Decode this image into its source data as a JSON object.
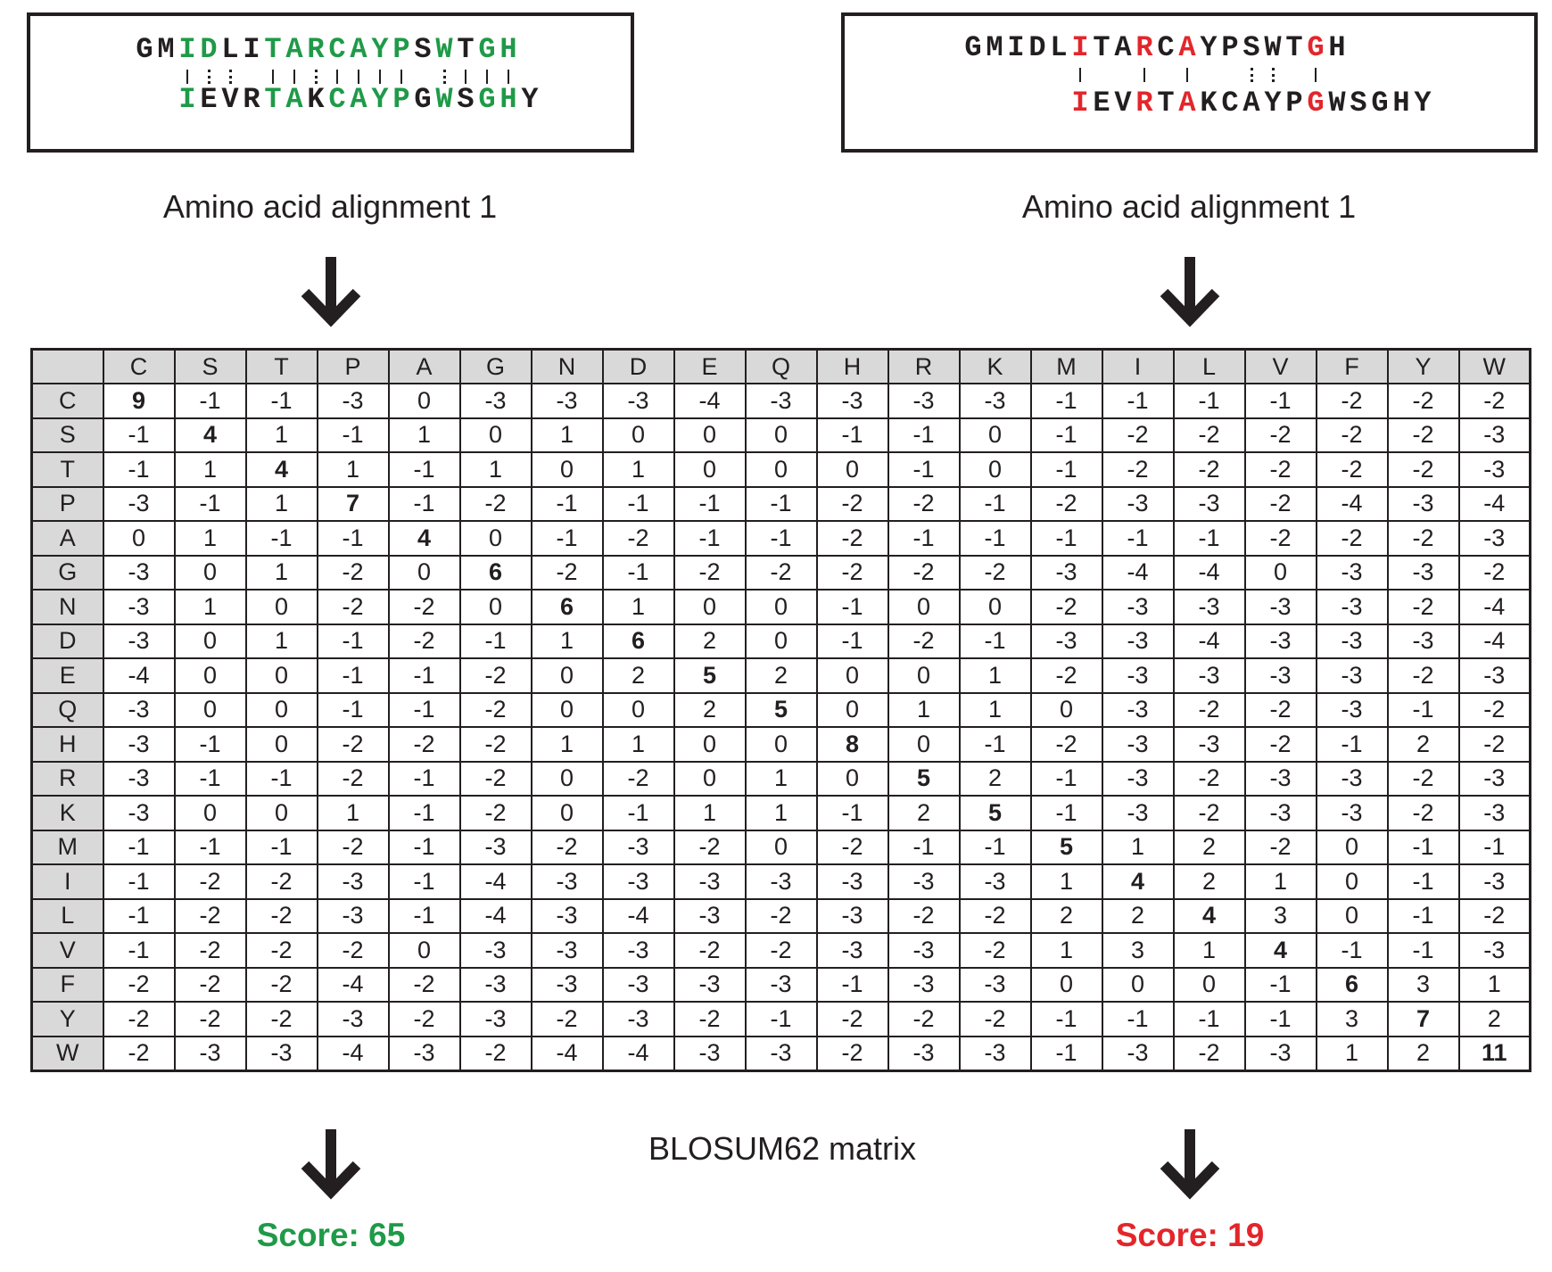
{
  "alignments": [
    {
      "id": "left",
      "caption": "Amino acid alignment 1",
      "top_sequence": "GMIDLITARCAYPSWTGH",
      "bottom_sequence": "IEVRTAKCAYPGWSGHY",
      "top_offset": 0,
      "bottom_offset": 2,
      "highlight_color": "#1f9a48",
      "top_highlight": [
        2,
        3,
        6,
        7,
        8,
        9,
        10,
        11,
        12,
        14,
        16,
        17
      ],
      "bottom_highlight": [
        0,
        4,
        5,
        7,
        8,
        9,
        10,
        12,
        14,
        15
      ],
      "connectors": [
        {
          "col": 2,
          "style": "solid"
        },
        {
          "col": 3,
          "style": "dotted"
        },
        {
          "col": 4,
          "style": "dotted"
        },
        {
          "col": 6,
          "style": "solid"
        },
        {
          "col": 7,
          "style": "solid"
        },
        {
          "col": 8,
          "style": "dotted"
        },
        {
          "col": 9,
          "style": "solid"
        },
        {
          "col": 10,
          "style": "solid"
        },
        {
          "col": 11,
          "style": "solid"
        },
        {
          "col": 12,
          "style": "solid"
        },
        {
          "col": 14,
          "style": "dotted"
        },
        {
          "col": 15,
          "style": "solid"
        },
        {
          "col": 16,
          "style": "solid"
        },
        {
          "col": 17,
          "style": "solid"
        }
      ],
      "score_label": "Score: 65",
      "score_color": "#1f9a48"
    },
    {
      "id": "right",
      "caption": "Amino acid alignment 1",
      "top_sequence": "GMIDLITARCAYPSWTGH",
      "bottom_sequence": "IEVRTAKCAYPGWSGHY",
      "top_offset": 0,
      "bottom_offset": 5,
      "highlight_color": "#e3262b",
      "top_highlight": [
        5,
        8,
        10,
        16
      ],
      "bottom_highlight": [
        0,
        3,
        5,
        11
      ],
      "connectors": [
        {
          "col": 5,
          "style": "solid"
        },
        {
          "col": 8,
          "style": "solid"
        },
        {
          "col": 10,
          "style": "solid"
        },
        {
          "col": 13,
          "style": "dotted"
        },
        {
          "col": 14,
          "style": "dotted"
        },
        {
          "col": 16,
          "style": "solid"
        }
      ],
      "score_label": "Score: 19",
      "score_color": "#e3262b"
    }
  ],
  "matrix": {
    "caption": "BLOSUM62 matrix",
    "labels": [
      "C",
      "S",
      "T",
      "P",
      "A",
      "G",
      "N",
      "D",
      "E",
      "Q",
      "H",
      "R",
      "K",
      "M",
      "I",
      "L",
      "V",
      "F",
      "Y",
      "W"
    ],
    "rows": [
      [
        9,
        -1,
        -1,
        -3,
        0,
        -3,
        -3,
        -3,
        -4,
        -3,
        -3,
        -3,
        -3,
        -1,
        -1,
        -1,
        -1,
        -2,
        -2,
        -2
      ],
      [
        -1,
        4,
        1,
        -1,
        1,
        0,
        1,
        0,
        0,
        0,
        -1,
        -1,
        0,
        -1,
        -2,
        -2,
        -2,
        -2,
        -2,
        -3
      ],
      [
        -1,
        1,
        4,
        1,
        -1,
        1,
        0,
        1,
        0,
        0,
        0,
        -1,
        0,
        -1,
        -2,
        -2,
        -2,
        -2,
        -2,
        -3
      ],
      [
        -3,
        -1,
        1,
        7,
        -1,
        -2,
        -1,
        -1,
        -1,
        -1,
        -2,
        -2,
        -1,
        -2,
        -3,
        -3,
        -2,
        -4,
        -3,
        -4
      ],
      [
        0,
        1,
        -1,
        -1,
        4,
        0,
        -1,
        -2,
        -1,
        -1,
        -2,
        -1,
        -1,
        -1,
        -1,
        -1,
        -2,
        -2,
        -2,
        -3
      ],
      [
        -3,
        0,
        1,
        -2,
        0,
        6,
        -2,
        -1,
        -2,
        -2,
        -2,
        -2,
        -2,
        -3,
        -4,
        -4,
        0,
        -3,
        -3,
        -2
      ],
      [
        -3,
        1,
        0,
        -2,
        -2,
        0,
        6,
        1,
        0,
        0,
        -1,
        0,
        0,
        -2,
        -3,
        -3,
        -3,
        -3,
        -2,
        -4
      ],
      [
        -3,
        0,
        1,
        -1,
        -2,
        -1,
        1,
        6,
        2,
        0,
        -1,
        -2,
        -1,
        -3,
        -3,
        -4,
        -3,
        -3,
        -3,
        -4
      ],
      [
        -4,
        0,
        0,
        -1,
        -1,
        -2,
        0,
        2,
        5,
        2,
        0,
        0,
        1,
        -2,
        -3,
        -3,
        -3,
        -3,
        -2,
        -3
      ],
      [
        -3,
        0,
        0,
        -1,
        -1,
        -2,
        0,
        0,
        2,
        5,
        0,
        1,
        1,
        0,
        -3,
        -2,
        -2,
        -3,
        -1,
        -2
      ],
      [
        -3,
        -1,
        0,
        -2,
        -2,
        -2,
        1,
        1,
        0,
        0,
        8,
        0,
        -1,
        -2,
        -3,
        -3,
        -2,
        -1,
        2,
        -2
      ],
      [
        -3,
        -1,
        -1,
        -2,
        -1,
        -2,
        0,
        -2,
        0,
        1,
        0,
        5,
        2,
        -1,
        -3,
        -2,
        -3,
        -3,
        -2,
        -3
      ],
      [
        -3,
        0,
        0,
        1,
        -1,
        -2,
        0,
        -1,
        1,
        1,
        -1,
        2,
        5,
        -1,
        -3,
        -2,
        -3,
        -3,
        -2,
        -3
      ],
      [
        -1,
        -1,
        -1,
        -2,
        -1,
        -3,
        -2,
        -3,
        -2,
        0,
        -2,
        -1,
        -1,
        5,
        1,
        2,
        -2,
        0,
        -1,
        -1
      ],
      [
        -1,
        -2,
        -2,
        -3,
        -1,
        -4,
        -3,
        -3,
        -3,
        -3,
        -3,
        -3,
        -3,
        1,
        4,
        2,
        1,
        0,
        -1,
        -3
      ],
      [
        -1,
        -2,
        -2,
        -3,
        -1,
        -4,
        -3,
        -4,
        -3,
        -2,
        -3,
        -2,
        -2,
        2,
        2,
        4,
        3,
        0,
        -1,
        -2
      ],
      [
        -1,
        -2,
        -2,
        -2,
        0,
        -3,
        -3,
        -3,
        -2,
        -2,
        -3,
        -3,
        -2,
        1,
        3,
        1,
        4,
        -1,
        -1,
        -3
      ],
      [
        -2,
        -2,
        -2,
        -4,
        -2,
        -3,
        -3,
        -3,
        -3,
        -3,
        -1,
        -3,
        -3,
        0,
        0,
        0,
        -1,
        6,
        3,
        1
      ],
      [
        -2,
        -2,
        -2,
        -3,
        -2,
        -3,
        -2,
        -3,
        -2,
        -1,
        -2,
        -2,
        -2,
        -1,
        -1,
        -1,
        -1,
        3,
        7,
        2
      ],
      [
        -2,
        -3,
        -3,
        -4,
        -3,
        -2,
        -4,
        -4,
        -3,
        -3,
        -2,
        -3,
        -3,
        -1,
        -3,
        -2,
        -3,
        1,
        2,
        11
      ]
    ]
  },
  "arrow_icon": "down-arrow-icon",
  "text_color": "#231f20",
  "header_fill": "#d9d9d9"
}
